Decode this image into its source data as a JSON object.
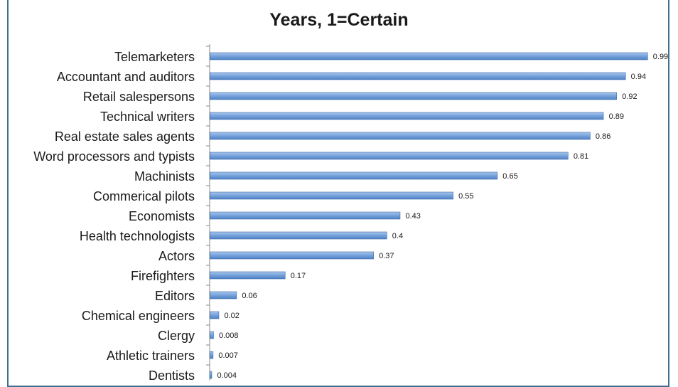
{
  "chart_data": {
    "type": "bar",
    "orientation": "horizontal",
    "title": "Years, 1=Certain",
    "categories": [
      "Telemarketers",
      "Accountant and auditors",
      "Retail salespersons",
      "Technical writers",
      "Real estate sales agents",
      "Word processors and typists",
      "Machinists",
      "Commerical pilots",
      "Economists",
      "Health technologists",
      "Actors",
      "Firefighters",
      "Editors",
      "Chemical engineers",
      "Clergy",
      "Athletic trainers",
      "Dentists"
    ],
    "values": [
      0.99,
      0.94,
      0.92,
      0.89,
      0.86,
      0.81,
      0.65,
      0.55,
      0.43,
      0.4,
      0.37,
      0.17,
      0.06,
      0.02,
      0.008,
      0.007,
      0.004
    ],
    "value_labels": [
      "0.99",
      "0.94",
      "0.92",
      "0.89",
      "0.86",
      "0.81",
      "0.65",
      "0.55",
      "0.43",
      "0.4",
      "0.37",
      "0.17",
      "0.06",
      "0.02",
      "0.008",
      "0.007",
      "0.004"
    ],
    "xlim": [
      0,
      1
    ],
    "bar_color": "#6f9bd6",
    "bar_edge_color": "#3a6aa8",
    "axis_color": "#8a8a8a",
    "grid": false,
    "legend": false
  }
}
